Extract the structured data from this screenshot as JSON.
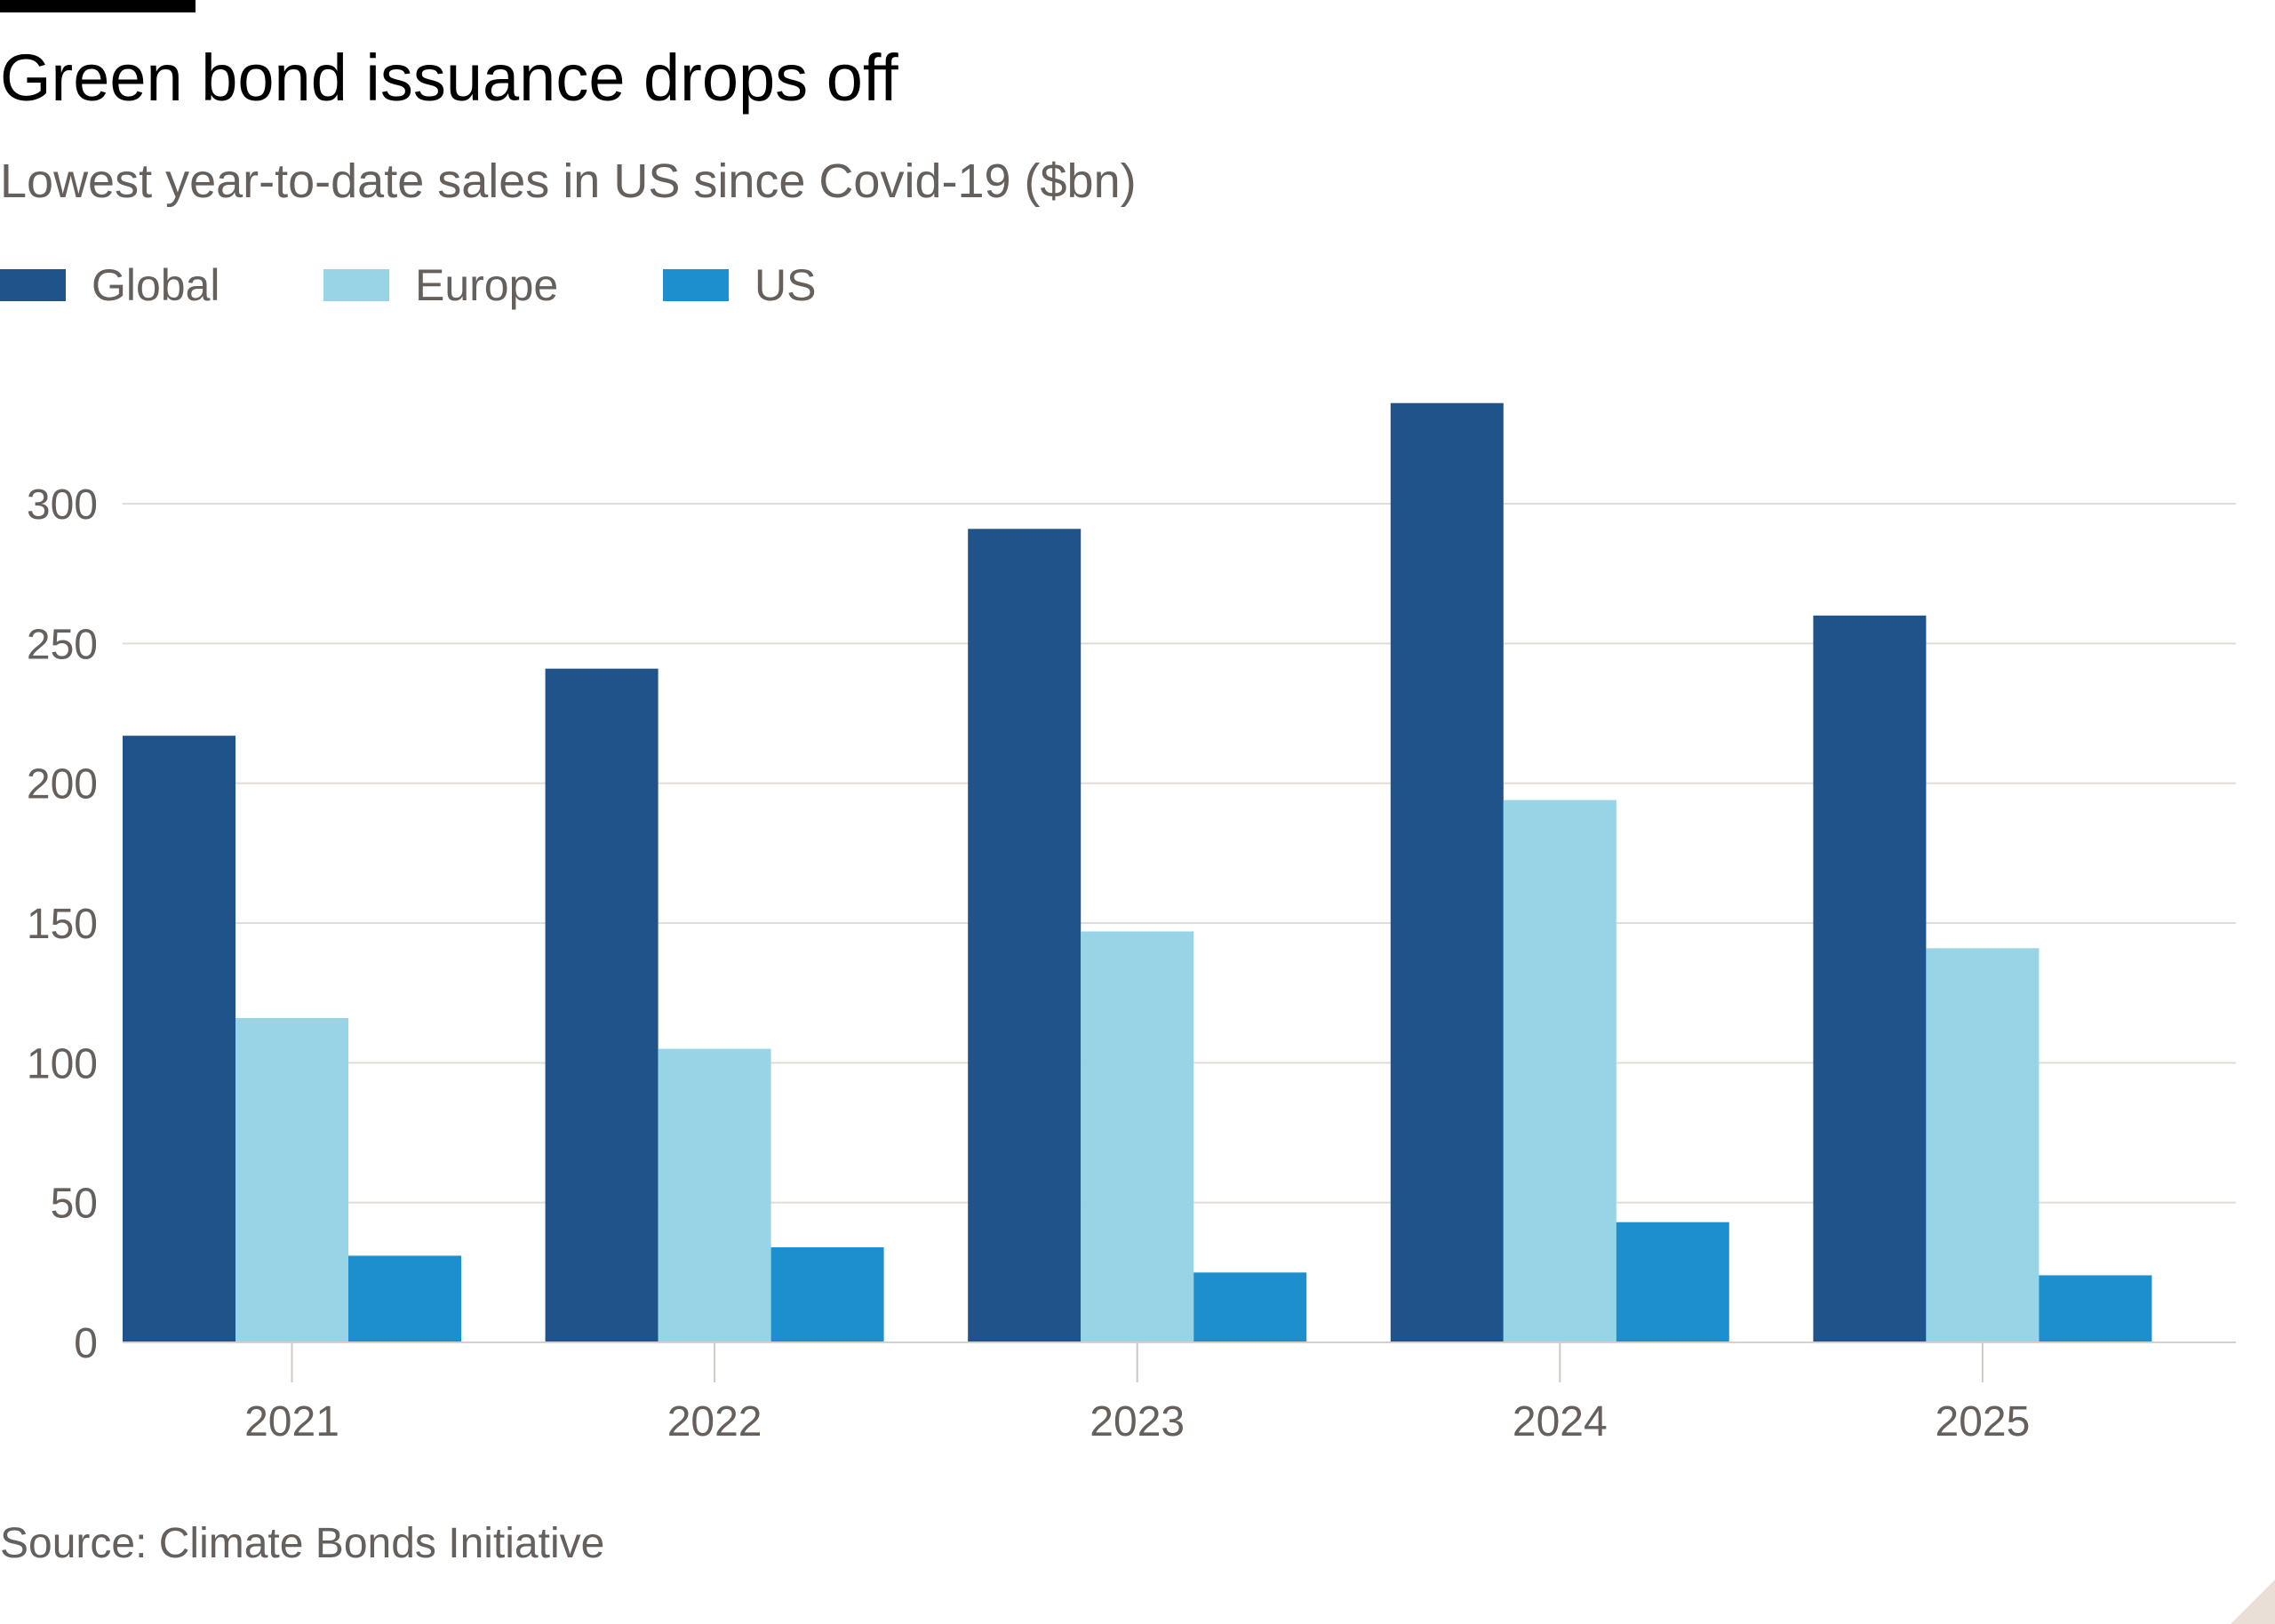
{
  "chart_data": {
    "type": "bar",
    "title": "Green bond issuance drops off",
    "subtitle": "Lowest year-to-date sales in US since Covid-19 ($bn)",
    "categories": [
      "2021",
      "2022",
      "2023",
      "2024",
      "2025"
    ],
    "series": [
      {
        "name": "Global",
        "color": "#1f538a",
        "values": [
          217,
          241,
          291,
          336,
          260
        ]
      },
      {
        "name": "Europe",
        "color": "#96d4e6",
        "values": [
          116,
          105,
          147,
          194,
          141
        ]
      },
      {
        "name": "US",
        "color": "#1e8fce",
        "values": [
          31,
          34,
          25,
          43,
          24
        ]
      }
    ],
    "ylim": [
      0,
      340
    ],
    "yticks": [
      0,
      50,
      100,
      150,
      200,
      250,
      300
    ],
    "xlabel": "",
    "ylabel": "",
    "grid": true,
    "legend_position": "top-left",
    "source": "Source: Climate Bonds Initiative"
  }
}
